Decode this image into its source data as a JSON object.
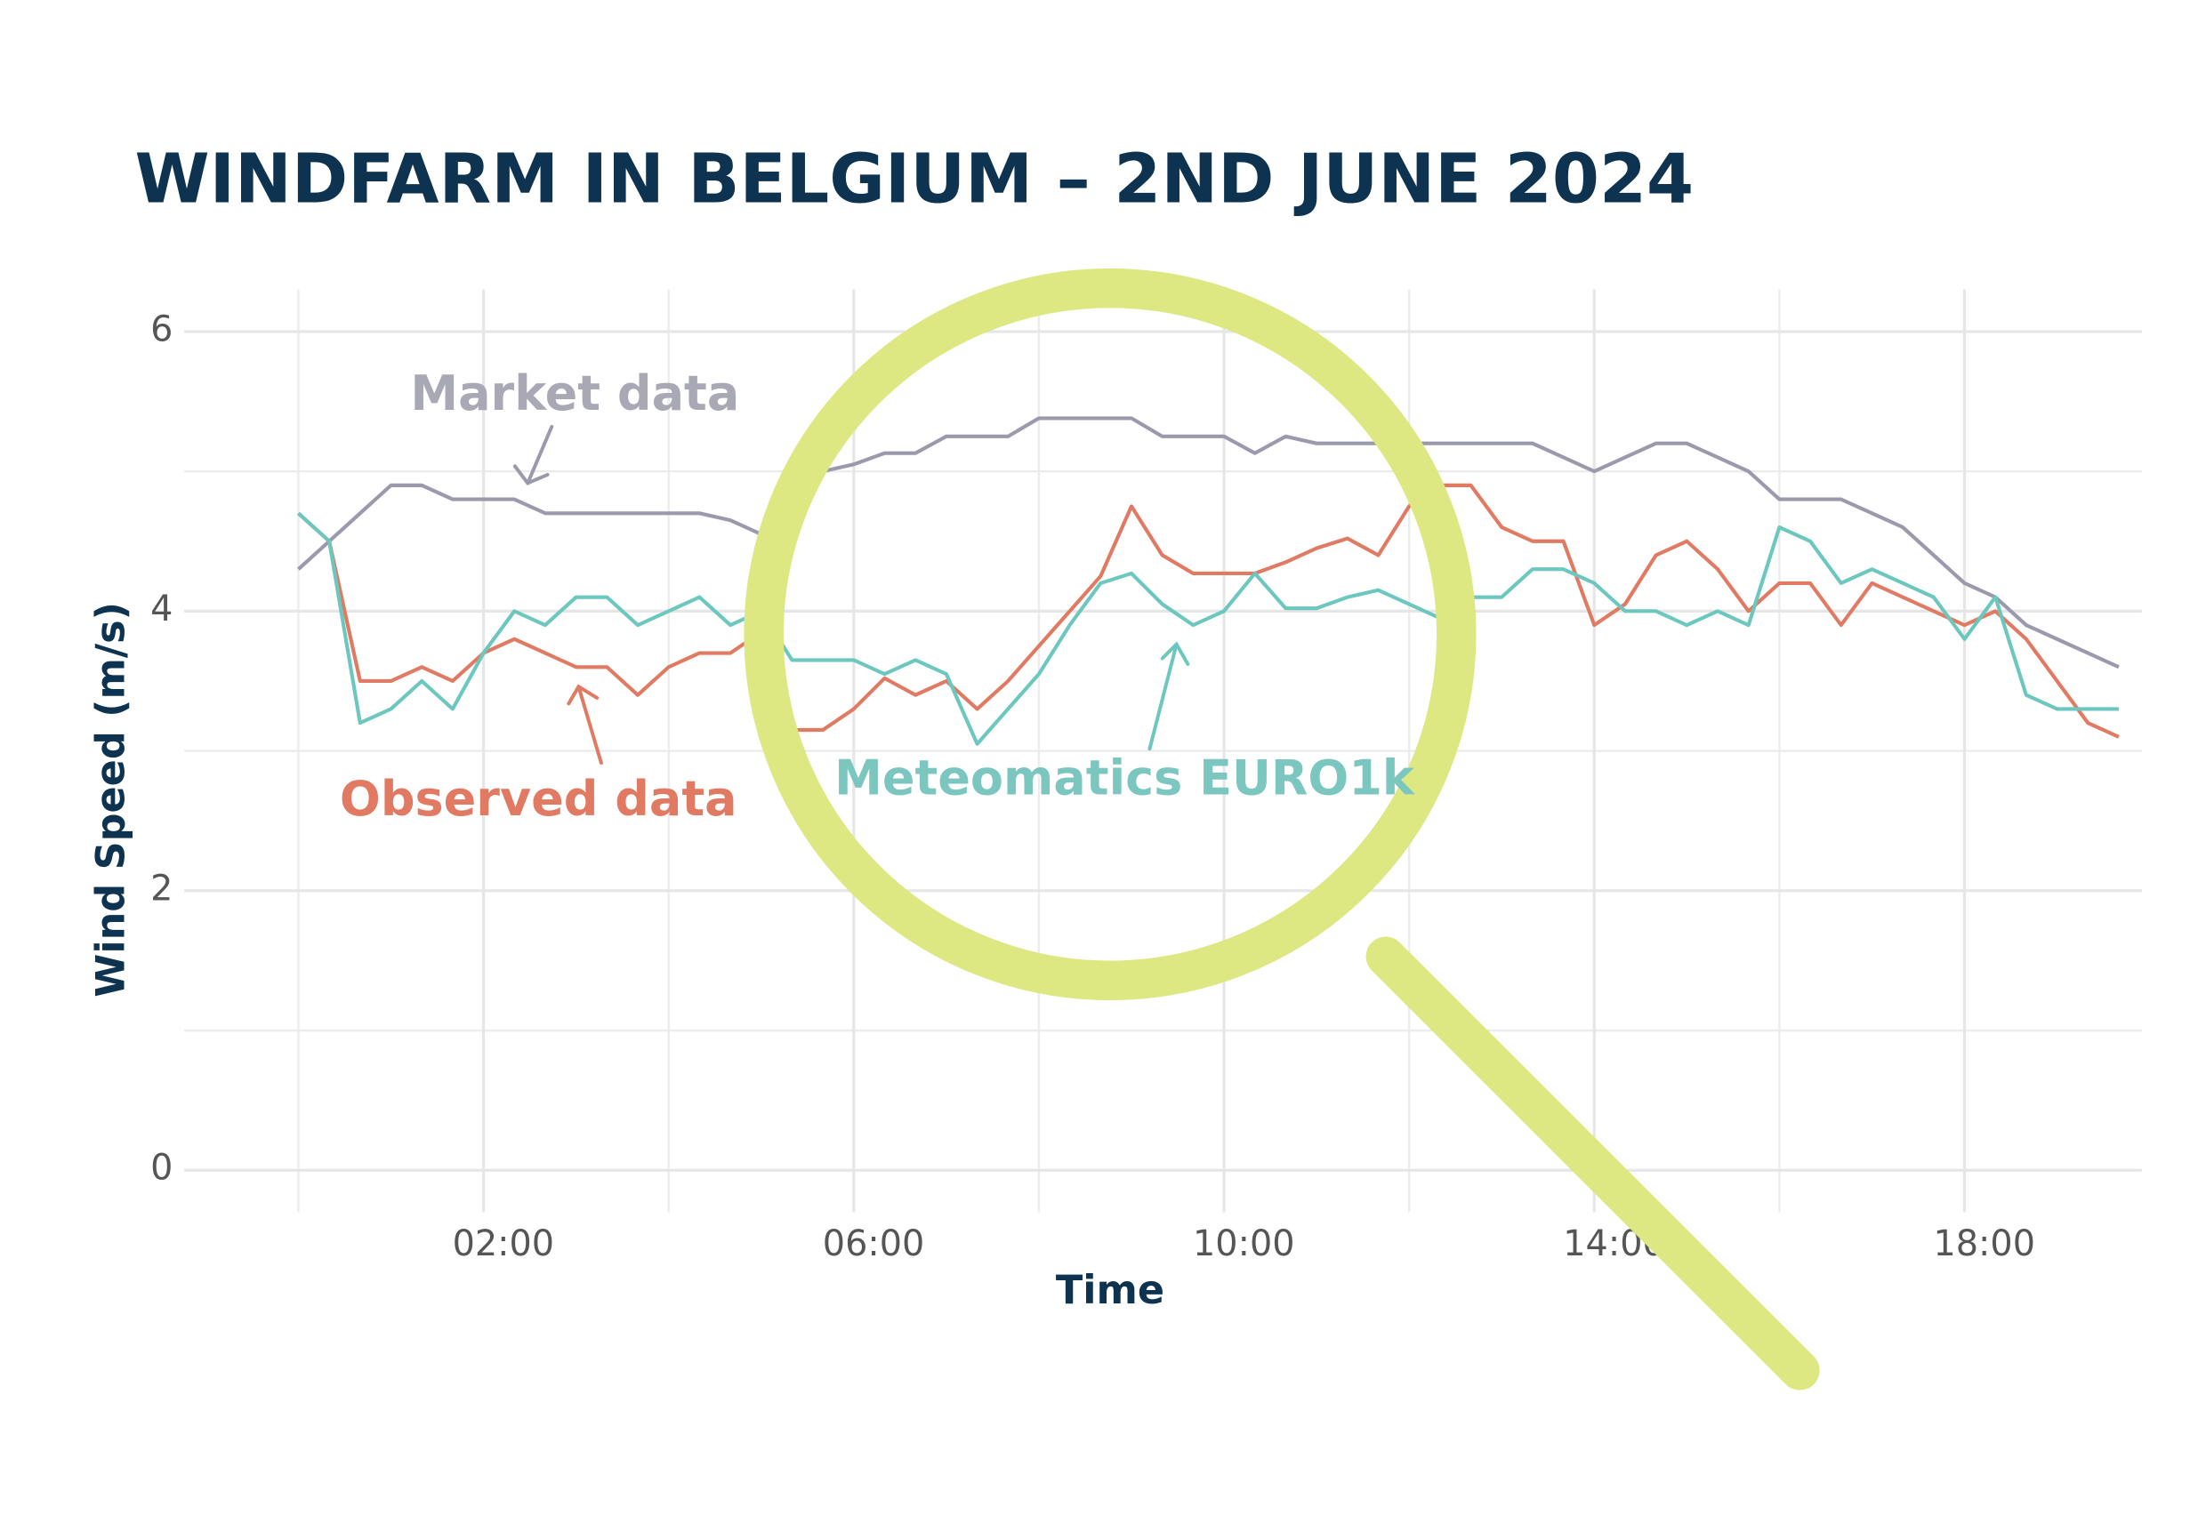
{
  "chart_data": {
    "type": "line",
    "title": "WINDFARM IN BELGIUM – 2ND JUNE 2024",
    "x_label": "Time",
    "y_label": "Wind Speed (m/s)",
    "x": [
      0,
      20,
      40,
      60,
      80,
      100,
      120,
      140,
      160,
      180,
      200,
      220,
      240,
      260,
      280,
      300,
      320,
      340,
      360,
      380,
      400,
      420,
      440,
      460,
      480,
      500,
      520,
      540,
      560,
      580,
      600,
      620,
      640,
      660,
      680,
      700,
      720,
      740,
      760,
      780,
      800,
      820,
      840,
      860,
      880,
      900,
      920,
      940,
      960,
      980,
      1000,
      1020,
      1040,
      1060,
      1080,
      1100,
      1120,
      1140,
      1160,
      1180
    ],
    "series": [
      {
        "name": "Market data",
        "color": "#9a9aac",
        "label_color": "#a9a9b6",
        "values": [
          4.3,
          4.5,
          4.7,
          4.9,
          4.9,
          4.8,
          4.8,
          4.8,
          4.7,
          4.7,
          4.7,
          4.7,
          4.7,
          4.7,
          4.65,
          4.55,
          4.75,
          5.0,
          5.05,
          5.13,
          5.13,
          5.25,
          5.25,
          5.25,
          5.38,
          5.38,
          5.38,
          5.38,
          5.25,
          5.25,
          5.25,
          5.13,
          5.25,
          5.2,
          5.2,
          5.2,
          5.2,
          5.2,
          5.2,
          5.2,
          5.2,
          5.1,
          5.0,
          5.1,
          5.2,
          5.2,
          5.1,
          5.0,
          4.8,
          4.8,
          4.8,
          4.7,
          4.6,
          4.4,
          4.2,
          4.1,
          3.9,
          3.8,
          3.7,
          3.6
        ]
      },
      {
        "name": "Observed data",
        "color": "#e07a62",
        "label_color": "#e07a62",
        "values": [
          4.7,
          4.5,
          3.5,
          3.5,
          3.6,
          3.5,
          3.7,
          3.8,
          3.7,
          3.6,
          3.6,
          3.4,
          3.6,
          3.7,
          3.7,
          3.85,
          3.15,
          3.15,
          3.3,
          3.52,
          3.4,
          3.5,
          3.3,
          3.5,
          3.75,
          4.0,
          4.25,
          4.75,
          4.4,
          4.27,
          4.27,
          4.27,
          4.35,
          4.45,
          4.52,
          4.4,
          4.75,
          4.9,
          4.9,
          4.6,
          4.5,
          4.5,
          3.9,
          4.05,
          4.4,
          4.5,
          4.3,
          4.0,
          4.2,
          4.2,
          3.9,
          4.2,
          4.1,
          4.0,
          3.9,
          4.0,
          3.8,
          3.5,
          3.2,
          3.1
        ]
      },
      {
        "name": "Meteomatics EURO1k",
        "color": "#6cc7bf",
        "label_color": "#7cc6c0",
        "values": [
          4.7,
          4.5,
          3.2,
          3.3,
          3.5,
          3.3,
          3.7,
          4.0,
          3.9,
          4.1,
          4.1,
          3.9,
          4.0,
          4.1,
          3.9,
          4.0,
          3.65,
          3.65,
          3.65,
          3.55,
          3.65,
          3.55,
          3.05,
          3.3,
          3.55,
          3.9,
          4.2,
          4.27,
          4.05,
          3.9,
          4.0,
          4.27,
          4.02,
          4.02,
          4.1,
          4.15,
          4.05,
          3.95,
          4.1,
          4.1,
          4.3,
          4.3,
          4.2,
          4.0,
          4.0,
          3.9,
          4.0,
          3.9,
          4.6,
          4.5,
          4.2,
          4.3,
          4.2,
          4.1,
          3.8,
          4.1,
          3.4,
          3.3,
          3.3,
          3.3
        ]
      }
    ],
    "xlim": [
      -74,
      1195
    ],
    "ylim": [
      -0.3,
      6.3
    ],
    "xticks": [
      {
        "value": 120,
        "label": "02:00"
      },
      {
        "value": 360,
        "label": "06:00"
      },
      {
        "value": 600,
        "label": "10:00"
      },
      {
        "value": 840,
        "label": "14:00"
      },
      {
        "value": 1080,
        "label": "18:00"
      }
    ],
    "x_minor_ticks": [
      0,
      240,
      480,
      720,
      960
    ],
    "yticks": [
      0,
      2,
      4,
      6
    ],
    "y_minor_ticks": [
      1,
      3,
      5
    ],
    "grid": true
  }
}
